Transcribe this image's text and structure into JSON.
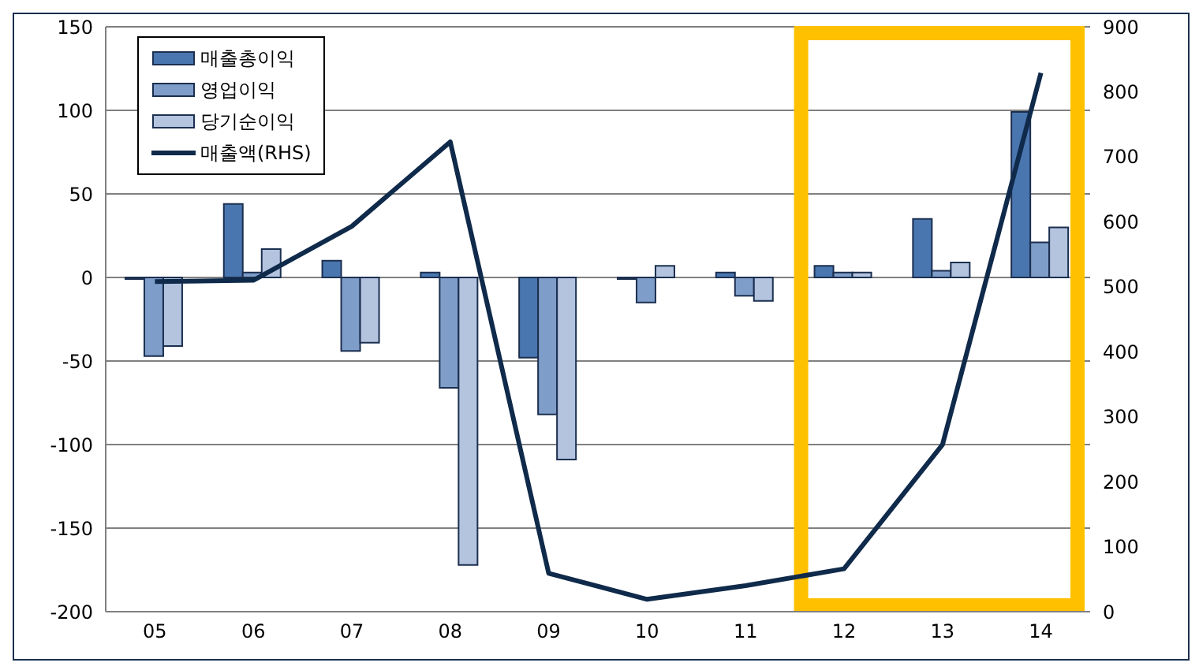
{
  "chart_data": {
    "type": "bar",
    "categories": [
      "05",
      "06",
      "07",
      "08",
      "09",
      "10",
      "11",
      "12",
      "13",
      "14"
    ],
    "series": [
      {
        "name": "매출총이익",
        "color": "#4a76b0",
        "values": [
          -1,
          44,
          10,
          3,
          -48,
          -1,
          3,
          7,
          35,
          99
        ]
      },
      {
        "name": "영업이익",
        "color": "#7f9dc9",
        "values": [
          -47,
          3,
          -44,
          -66,
          -82,
          -15,
          -11,
          3,
          4,
          21
        ]
      },
      {
        "name": "당기순이익",
        "color": "#b4c3de",
        "values": [
          -41,
          17,
          -39,
          -172,
          -109,
          7,
          -14,
          3,
          9,
          30
        ]
      },
      {
        "name": "매출액(RHS)",
        "type": "line",
        "axis": "y2",
        "color": "#0f2a4a",
        "values": [
          508,
          510,
          593,
          723,
          59,
          19,
          40,
          66,
          257,
          829
        ]
      }
    ],
    "ylim": [
      -200,
      150
    ],
    "yticks": [
      -200,
      -150,
      -100,
      -50,
      0,
      50,
      100,
      150
    ],
    "y2lim": [
      0,
      900
    ],
    "y2ticks": [
      0,
      100,
      200,
      300,
      400,
      500,
      600,
      700,
      800,
      900
    ],
    "grid": "y",
    "legend": "top left",
    "marker": "none",
    "line_style": "solid"
  }
}
